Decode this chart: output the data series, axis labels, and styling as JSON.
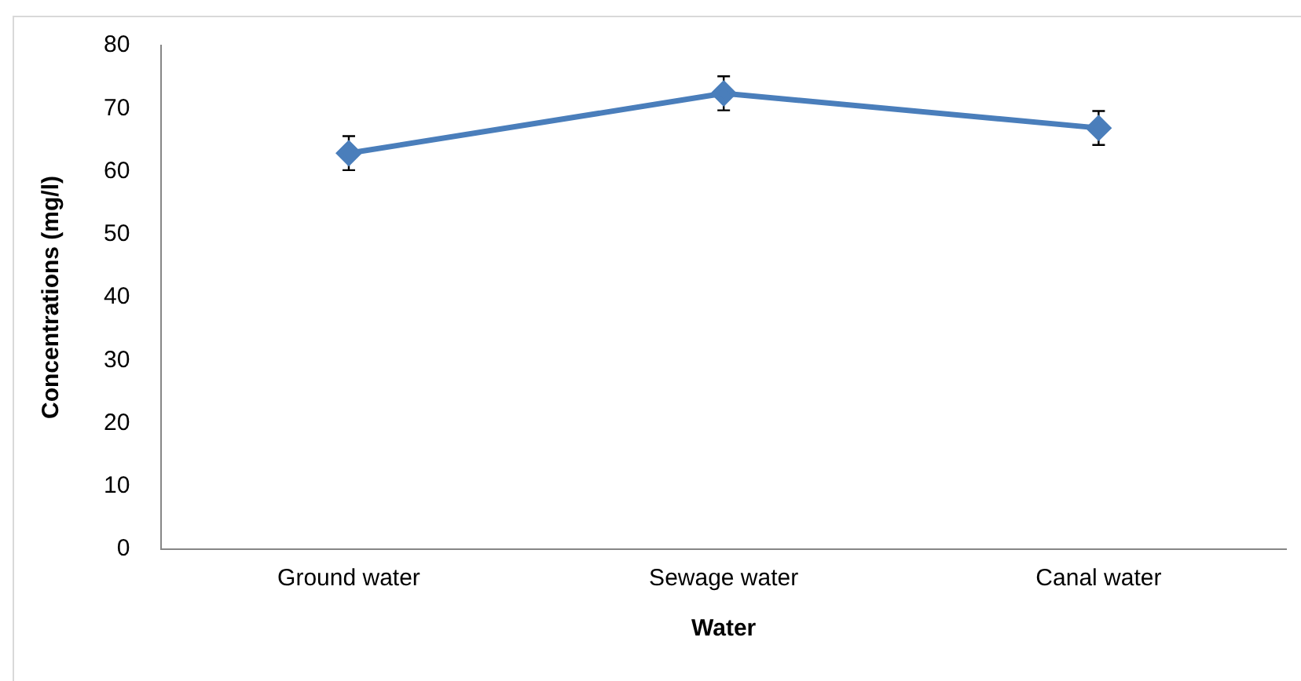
{
  "chart_data": {
    "type": "line",
    "xlabel": "Water",
    "ylabel": "Concentrations (mg/l)",
    "categories": [
      "Ground water",
      "Sewage water",
      "Canal water"
    ],
    "series": [
      {
        "color": "#4a7ebb",
        "values": [
          62.9,
          72.4,
          66.9
        ],
        "errors": [
          2.7,
          2.7,
          2.7
        ]
      }
    ],
    "ylim": [
      0,
      80
    ],
    "yticks": [
      0,
      10,
      20,
      30,
      40,
      50,
      60,
      70,
      80
    ],
    "grid": false,
    "legend": false,
    "marker": "diamond",
    "line_style": "solid"
  }
}
